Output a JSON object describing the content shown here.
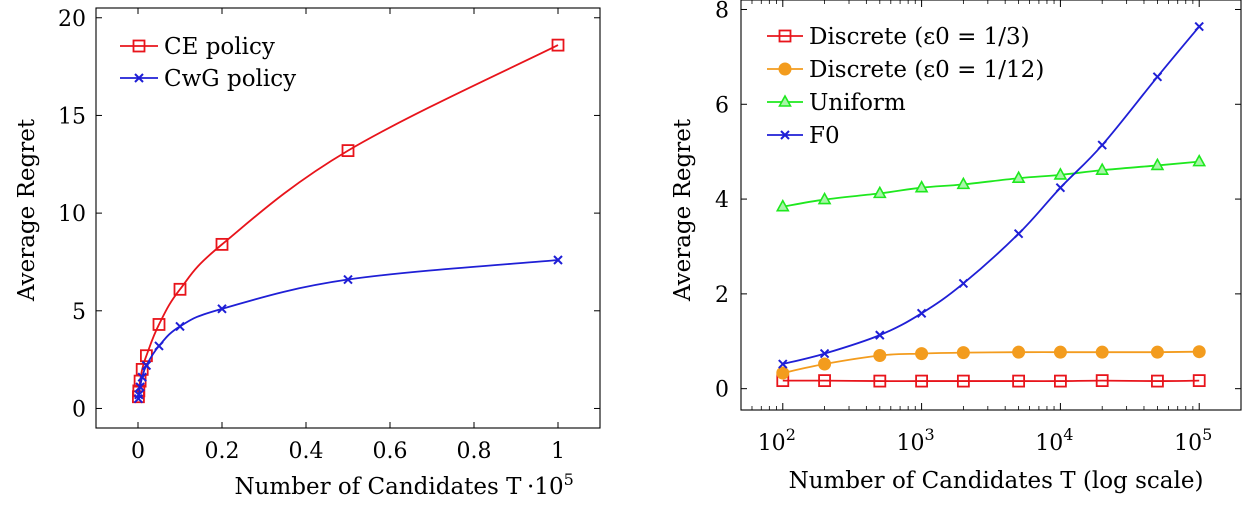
{
  "chart_data": [
    {
      "type": "line",
      "xlabel": "Number of Candidates T",
      "ylabel": "Average Regret",
      "x_multiplier_label": "·10",
      "x_multiplier_exp": "5",
      "xlim": [
        -0.1,
        1.1
      ],
      "ylim": [
        -1,
        20.5
      ],
      "x_ticks": [
        0,
        0.2,
        0.4,
        0.6,
        0.8,
        1
      ],
      "x_tick_labels": [
        "0",
        "0.2",
        "0.4",
        "0.6",
        "0.8",
        "1"
      ],
      "y_ticks": [
        0,
        5,
        10,
        15,
        20
      ],
      "y_tick_labels": [
        "0",
        "5",
        "10",
        "15",
        "20"
      ],
      "legend_position": "top-left",
      "series": [
        {
          "name": "CE policy",
          "color": "#e8141b",
          "marker": "square",
          "x": [
            0.001,
            0.002,
            0.005,
            0.01,
            0.02,
            0.05,
            0.1,
            0.2,
            0.5,
            1
          ],
          "y": [
            0.6,
            0.9,
            1.4,
            2.0,
            2.7,
            4.3,
            6.1,
            8.4,
            13.2,
            18.6
          ]
        },
        {
          "name": "CwG policy",
          "color": "#1f1fd6",
          "marker": "x",
          "x": [
            0.001,
            0.002,
            0.005,
            0.01,
            0.02,
            0.05,
            0.1,
            0.2,
            0.5,
            1
          ],
          "y": [
            0.5,
            0.7,
            1.1,
            1.6,
            2.2,
            3.2,
            4.2,
            5.1,
            6.6,
            7.6
          ]
        }
      ]
    },
    {
      "type": "line",
      "xlabel": "Number of Candidates T (log scale)",
      "ylabel": "Average Regret",
      "x_scale": "log",
      "xlim": [
        50,
        200000
      ],
      "ylim": [
        -0.45,
        8.2
      ],
      "x_ticks": [
        100,
        1000,
        10000,
        100000
      ],
      "x_tick_bases": [
        "10",
        "10",
        "10",
        "10"
      ],
      "x_tick_exps": [
        "2",
        "3",
        "4",
        "5"
      ],
      "y_ticks": [
        0,
        2,
        4,
        6,
        8
      ],
      "y_tick_labels": [
        "0",
        "2",
        "4",
        "6",
        "8"
      ],
      "legend_position": "top-left",
      "series": [
        {
          "name": "Discrete (ε0 = 1/3)",
          "color": "#e8141b",
          "marker": "square",
          "x": [
            100,
            200,
            500,
            1000,
            2000,
            5000,
            10000,
            20000,
            50000,
            100000
          ],
          "y": [
            0.17,
            0.17,
            0.16,
            0.16,
            0.16,
            0.16,
            0.16,
            0.17,
            0.16,
            0.17
          ]
        },
        {
          "name": "Discrete (ε0 = 1/12)",
          "color": "#f39c1e",
          "marker": "circle",
          "x": [
            100,
            200,
            500,
            1000,
            2000,
            5000,
            10000,
            20000,
            50000,
            100000
          ],
          "y": [
            0.33,
            0.52,
            0.7,
            0.74,
            0.76,
            0.77,
            0.77,
            0.77,
            0.77,
            0.78
          ]
        },
        {
          "name": "Uniform",
          "color": "#1ee81e",
          "marker": "triangle",
          "x": [
            100,
            200,
            500,
            1000,
            2000,
            5000,
            10000,
            20000,
            50000,
            100000
          ],
          "y": [
            3.84,
            3.99,
            4.12,
            4.24,
            4.31,
            4.44,
            4.51,
            4.61,
            4.71,
            4.79
          ]
        },
        {
          "name": "F0",
          "color": "#1f1fd6",
          "marker": "x",
          "x": [
            100,
            200,
            500,
            1000,
            2000,
            5000,
            10000,
            20000,
            50000,
            100000
          ],
          "y": [
            0.52,
            0.74,
            1.13,
            1.59,
            2.22,
            3.27,
            4.24,
            5.14,
            6.58,
            7.64
          ]
        }
      ]
    }
  ]
}
